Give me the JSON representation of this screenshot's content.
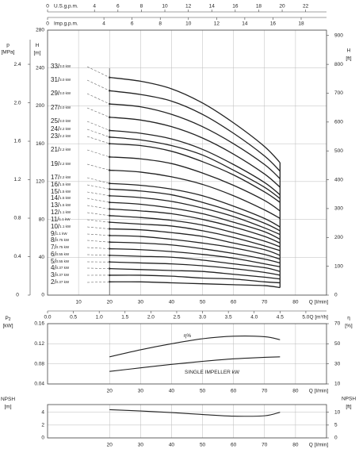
{
  "chart_data": [
    {
      "type": "line",
      "x": [
        20,
        30,
        40,
        50,
        60,
        70,
        75
      ],
      "xlim": [
        0,
        90
      ],
      "xticks": [
        10,
        20,
        30,
        40,
        50,
        60,
        70,
        80
      ],
      "xlabel": "Q [l/min]",
      "ylabel": "H",
      "yunit": "[m]",
      "ylim": [
        0,
        280
      ],
      "yticks": [
        0,
        40,
        80,
        120,
        160,
        200,
        240,
        280
      ],
      "y2label": "H",
      "y2unit": "[ft]",
      "y2lim": [
        0,
        918.6
      ],
      "y2ticks": [
        0,
        100,
        200,
        300,
        400,
        500,
        600,
        700,
        800,
        900
      ],
      "y3label": "p",
      "y3unit": "[MPa]",
      "y3lim": [
        0,
        2.755
      ],
      "y3ticks": [
        0,
        0.4,
        0.8,
        1.2,
        1.6,
        {
          "value": 2,
          "label": "2.0"
        },
        2.4
      ],
      "top_axes": [
        {
          "label": "U.S.g.p.m.",
          "xlim": [
            0,
            23.78
          ],
          "xticks": [
            0,
            4,
            6,
            8,
            10,
            12,
            14,
            16,
            18,
            20,
            22
          ]
        },
        {
          "label": "Imp.g.p.m.",
          "xlim": [
            0,
            19.8
          ],
          "xticks": [
            0,
            4,
            6,
            8,
            10,
            12,
            14,
            16,
            18
          ]
        }
      ],
      "bottom_axis": {
        "label": "Q [m³/h]",
        "xlim": [
          0,
          5.4
        ],
        "xticks": [
          {
            "value": 0,
            "label": "0.0"
          },
          0.5,
          {
            "value": 1,
            "label": "1.0"
          },
          1.5,
          {
            "value": 2,
            "label": "2.0"
          },
          2.5,
          {
            "value": 3,
            "label": "3.0"
          },
          3.5,
          {
            "value": 4,
            "label": "4.0"
          },
          4.5,
          {
            "value": 5,
            "label": "5.0"
          }
        ]
      },
      "grid": true,
      "color": "#222",
      "series": [
        {
          "name": "33/",
          "power": "3.0 kW",
          "values": [
            230,
            226,
            218,
            203,
            182,
            157,
            140
          ]
        },
        {
          "name": "31/",
          "power": "3.0 kW",
          "values": [
            216,
            212,
            205,
            191,
            171,
            147,
            131
          ]
        },
        {
          "name": "29/",
          "power": "3.0 kW",
          "values": [
            202,
            199,
            191,
            178,
            160,
            138,
            123
          ]
        },
        {
          "name": "27/",
          "power": "3.0 kW",
          "values": [
            188,
            185,
            178,
            166,
            149,
            128,
            114
          ]
        },
        {
          "name": "25/",
          "power": "3.0 kW",
          "values": [
            174,
            171,
            165,
            154,
            138,
            119,
            106
          ]
        },
        {
          "name": "24/",
          "power": "2.2 kW",
          "values": [
            167,
            164,
            158,
            148,
            132,
            114,
            102
          ]
        },
        {
          "name": "23/",
          "power": "2.2 kW",
          "values": [
            160,
            158,
            152,
            141,
            127,
            109,
            98
          ]
        },
        {
          "name": "21/",
          "power": "2.2 kW",
          "values": [
            146,
            144,
            139,
            129,
            116,
            100,
            89
          ]
        },
        {
          "name": "19/",
          "power": "2.2 kW",
          "values": [
            132,
            130,
            125,
            117,
            105,
            90,
            81
          ]
        },
        {
          "name": "17/",
          "power": "2.2 kW",
          "values": [
            118,
            116,
            112,
            105,
            94,
            81,
            72
          ]
        },
        {
          "name": "16/",
          "power": "1.5 kW",
          "values": [
            112,
            110,
            106,
            98,
            88,
            76,
            68
          ]
        },
        {
          "name": "15/",
          "power": "1.5 kW",
          "values": [
            105,
            103,
            99,
            92,
            83,
            71,
            64
          ]
        },
        {
          "name": "14/",
          "power": "1.5 kW",
          "values": [
            98,
            96,
            92,
            86,
            77,
            67,
            59
          ]
        },
        {
          "name": "13/",
          "power": "1.5 kW",
          "values": [
            91,
            89,
            86,
            80,
            72,
            62,
            55
          ]
        },
        {
          "name": "12/",
          "power": "1.1 kW",
          "values": [
            84,
            82,
            79,
            74,
            66,
            57,
            51
          ]
        },
        {
          "name": "11/",
          "power": "1.1 kW",
          "values": [
            77,
            75,
            73,
            68,
            61,
            52,
            47
          ]
        },
        {
          "name": "10/",
          "power": "1.1 kW",
          "values": [
            70,
            69,
            66,
            62,
            55,
            48,
            42
          ]
        },
        {
          "name": "9/",
          "power": "1.1 kW",
          "values": [
            63,
            62,
            59,
            55,
            50,
            43,
            38
          ]
        },
        {
          "name": "8/",
          "power": "0.75 kW",
          "values": [
            56,
            55,
            53,
            49,
            44,
            38,
            34
          ]
        },
        {
          "name": "7/",
          "power": "0.75 kW",
          "values": [
            49,
            48,
            46,
            43,
            39,
            33,
            30
          ]
        },
        {
          "name": "6/",
          "power": "0.55 kW",
          "values": [
            42,
            41,
            40,
            37,
            33,
            29,
            25
          ]
        },
        {
          "name": "5/",
          "power": "0.55 kW",
          "values": [
            35,
            34,
            33,
            31,
            28,
            24,
            21
          ]
        },
        {
          "name": "4/",
          "power": "0.37 kW",
          "values": [
            28,
            27,
            26,
            25,
            22,
            19,
            17
          ]
        },
        {
          "name": "3/",
          "power": "0.37 kW",
          "values": [
            21,
            21,
            20,
            18,
            17,
            14,
            13
          ]
        },
        {
          "name": "2/",
          "power": "0.37 kW",
          "values": [
            14,
            14,
            13,
            12,
            11,
            10,
            8
          ]
        }
      ]
    },
    {
      "type": "line",
      "x": [
        20,
        30,
        40,
        50,
        60,
        70,
        75
      ],
      "xlim": [
        0,
        90
      ],
      "xticks": [
        20,
        30,
        40,
        50,
        60,
        70,
        80
      ],
      "xlabel": "Q [l/min]",
      "ylabel": "P",
      "ylabel_sub": "2",
      "yunit": "[kW]",
      "ylim": [
        0.04,
        0.16
      ],
      "yticks": [
        0.04,
        0.08,
        0.12,
        0.16
      ],
      "y2label": "η",
      "y2unit": "[%]",
      "y2lim": [
        10,
        70
      ],
      "y2ticks": [
        10,
        30,
        50,
        70
      ],
      "grid": true,
      "color": "#222",
      "series": [
        {
          "name": "SINGLE IMPELLER kW",
          "values": [
            0.065,
            0.072,
            0.079,
            0.085,
            0.09,
            0.093,
            0.094
          ]
        },
        {
          "name": "η%",
          "axis": "y2",
          "values": [
            37,
            44,
            50,
            55,
            57.5,
            57,
            54
          ]
        }
      ]
    },
    {
      "type": "line",
      "x": [
        20,
        30,
        40,
        50,
        60,
        70,
        75
      ],
      "xlim": [
        0,
        90
      ],
      "xticks": [
        20,
        30,
        40,
        50,
        60,
        70,
        80
      ],
      "xlabel": "Q [l/min]",
      "ylabel": "NPSH",
      "yunit": "[m]",
      "ylim": [
        0,
        5.2
      ],
      "yticks": [
        0,
        2,
        4
      ],
      "y2label": "NPSH",
      "y2unit": "[ft]",
      "y2lim": [
        0,
        13
      ],
      "y2ticks": [
        0,
        5,
        10
      ],
      "grid": true,
      "color": "#222",
      "series": [
        {
          "values": [
            4.4,
            4.2,
            3.95,
            3.65,
            3.4,
            3.45,
            4.0
          ]
        }
      ]
    }
  ]
}
